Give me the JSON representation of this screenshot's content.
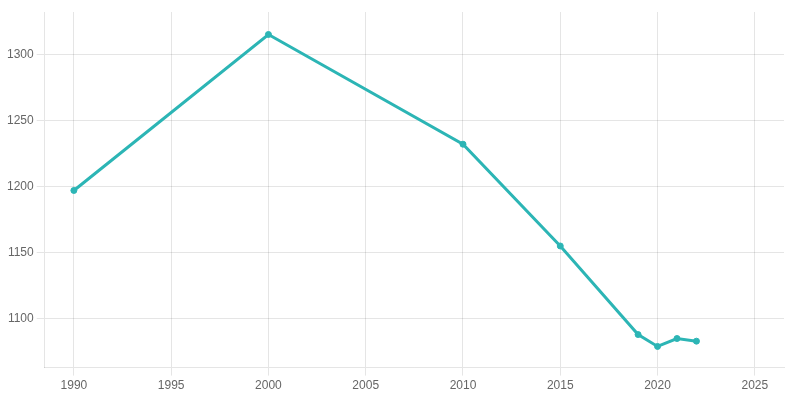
{
  "chart_data": {
    "type": "line",
    "x": [
      1990,
      2000,
      2010,
      2015,
      2019,
      2020,
      2021,
      2022
    ],
    "values": [
      1197,
      1315,
      1232,
      1155,
      1088,
      1079,
      1085,
      1083
    ],
    "color": "#2cb5b5",
    "marker": "circle",
    "xlim": [
      1988.5,
      2026.5
    ],
    "ylim": [
      1063,
      1332
    ],
    "xticks": [
      1990,
      1995,
      2000,
      2005,
      2010,
      2015,
      2020,
      2025
    ],
    "yticks": [
      1100,
      1150,
      1200,
      1250,
      1300
    ],
    "grid": true
  }
}
